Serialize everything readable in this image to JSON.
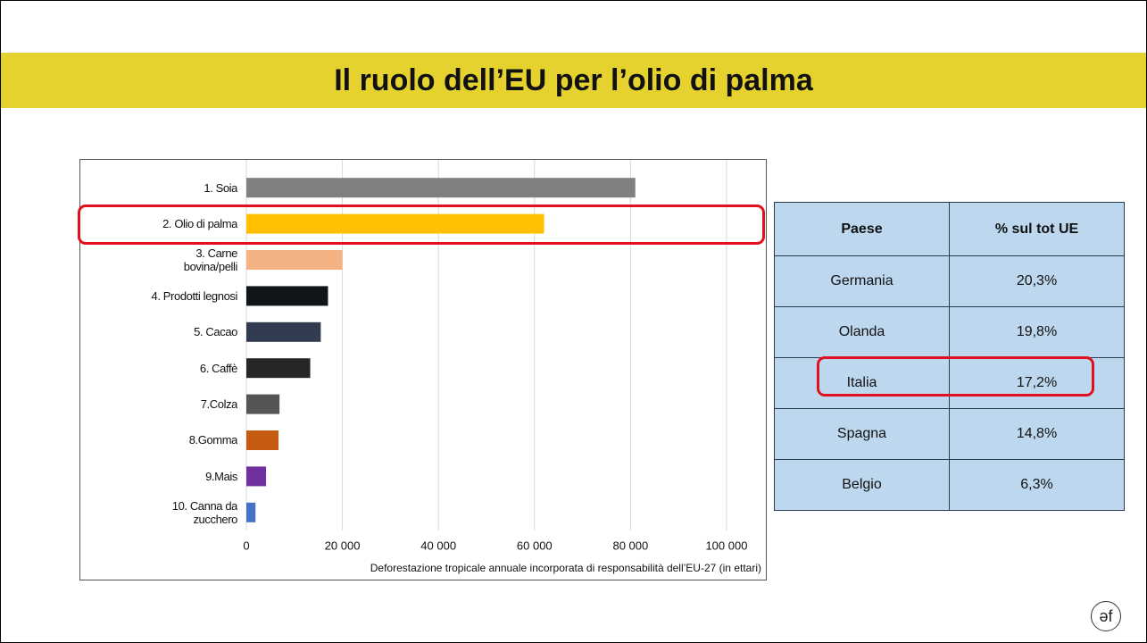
{
  "title": "Il ruolo dell’EU per l’olio di palma",
  "chart_data": {
    "type": "barh",
    "categories": [
      "1. Soia",
      "2. Olio di palma",
      "3. Carne bovina/pelli",
      "4. Prodotti legnosi",
      "5. Cacao",
      "6. Caffè",
      "7.Colza",
      "8.Gomma",
      "9.Mais",
      "10. Canna da zucchero"
    ],
    "values": [
      81000,
      62000,
      20000,
      17000,
      15500,
      13300,
      6900,
      6700,
      4100,
      1900
    ],
    "colors": [
      "#808080",
      "#ffc000",
      "#f4b183",
      "#111418",
      "#323c50",
      "#262626",
      "#555555",
      "#c55a11",
      "#7030a0",
      "#4472c4"
    ],
    "xlabel": "Deforestazione tropicale annuale incorporata di responsabilità dell’EU-27 (in ettari)",
    "xlim": [
      0,
      108000
    ],
    "xticks": [
      0,
      {
        "value": 20000,
        "label": "20 000"
      },
      {
        "value": 40000,
        "label": "40 000"
      },
      {
        "value": 60000,
        "label": "60 000"
      },
      {
        "value": 80000,
        "label": "80 000"
      },
      {
        "value": 100000,
        "label": "100 000"
      }
    ],
    "grid": true
  },
  "table": {
    "header": [
      "Paese",
      "% sul tot UE"
    ],
    "rows": [
      [
        "Germania",
        "20,3%"
      ],
      [
        "Olanda",
        "19,8%"
      ],
      [
        "Italia",
        "17,2%"
      ],
      [
        "Spagna",
        "14,8%"
      ],
      [
        "Belgio",
        "6,3%"
      ]
    ]
  },
  "logo": "əf"
}
